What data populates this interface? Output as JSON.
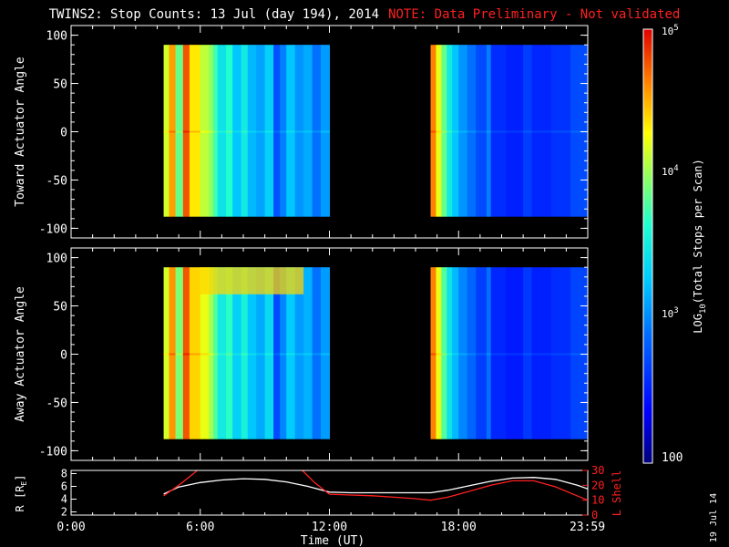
{
  "title": "TWINS2: Stop Counts: 13 Jul (day 194), 2014",
  "note": "NOTE: Data Preliminary - Not validated",
  "date_stamp": "19 Jul 14",
  "colorbar": {
    "label": "LOG10(Total Stops per Scan)",
    "tick_labels": [
      "10^5",
      "10^4",
      "10^3",
      "100"
    ],
    "tick_values": [
      100000,
      10000,
      1000,
      100
    ],
    "range": [
      100,
      100000
    ],
    "scale": "log"
  },
  "colors": {
    "background": "#000000",
    "axis": "#ffffff",
    "note": "#ff2020",
    "r_line": "#ffffff",
    "lshell_line": "#ff2020"
  },
  "chart_data": [
    {
      "type": "heatmap",
      "ylabel": "Toward Actuator Angle",
      "xlim": [
        0,
        24
      ],
      "ylim": [
        -110,
        110
      ],
      "yticks": [
        -100,
        -50,
        0,
        50,
        100
      ],
      "data_time_ranges": [
        [
          4.3,
          12.0
        ],
        [
          16.7,
          24.0
        ]
      ],
      "angle_range": [
        -88,
        90
      ],
      "bands": [
        {
          "t0": 4.3,
          "t1": 4.55,
          "level": 0.72
        },
        {
          "t0": 4.55,
          "t1": 4.85,
          "level": 0.85
        },
        {
          "t0": 4.85,
          "t1": 5.2,
          "level": 0.62
        },
        {
          "t0": 5.2,
          "t1": 5.5,
          "level": 0.92
        },
        {
          "t0": 5.5,
          "t1": 6.0,
          "level": 0.78
        },
        {
          "t0": 6.0,
          "t1": 6.4,
          "level": 0.7
        },
        {
          "t0": 6.4,
          "t1": 6.6,
          "level": 0.66
        },
        {
          "t0": 6.6,
          "t1": 6.8,
          "level": 0.58
        },
        {
          "t0": 6.8,
          "t1": 7.2,
          "level": 0.48
        },
        {
          "t0": 7.2,
          "t1": 7.5,
          "level": 0.55
        },
        {
          "t0": 7.5,
          "t1": 7.9,
          "level": 0.42
        },
        {
          "t0": 7.9,
          "t1": 8.2,
          "level": 0.5
        },
        {
          "t0": 8.2,
          "t1": 8.6,
          "level": 0.4
        },
        {
          "t0": 8.6,
          "t1": 9.0,
          "level": 0.37
        },
        {
          "t0": 9.0,
          "t1": 9.4,
          "level": 0.44
        },
        {
          "t0": 9.4,
          "t1": 9.7,
          "level": 0.25
        },
        {
          "t0": 9.7,
          "t1": 10.0,
          "level": 0.32
        },
        {
          "t0": 10.0,
          "t1": 10.4,
          "level": 0.42
        },
        {
          "t0": 10.4,
          "t1": 10.8,
          "level": 0.35
        },
        {
          "t0": 10.8,
          "t1": 11.2,
          "level": 0.38
        },
        {
          "t0": 11.2,
          "t1": 11.6,
          "level": 0.3
        },
        {
          "t0": 11.6,
          "t1": 12.0,
          "level": 0.36
        },
        {
          "t0": 16.7,
          "t1": 16.95,
          "level": 0.88
        },
        {
          "t0": 16.95,
          "t1": 17.2,
          "level": 0.74
        },
        {
          "t0": 17.2,
          "t1": 17.45,
          "level": 0.62
        },
        {
          "t0": 17.45,
          "t1": 17.7,
          "level": 0.5
        },
        {
          "t0": 17.7,
          "t1": 18.0,
          "level": 0.42
        },
        {
          "t0": 18.0,
          "t1": 18.4,
          "level": 0.35
        },
        {
          "t0": 18.4,
          "t1": 18.8,
          "level": 0.3
        },
        {
          "t0": 18.8,
          "t1": 19.3,
          "level": 0.24
        },
        {
          "t0": 19.3,
          "t1": 19.5,
          "level": 0.32
        },
        {
          "t0": 19.5,
          "t1": 20.2,
          "level": 0.19
        },
        {
          "t0": 20.2,
          "t1": 21.0,
          "level": 0.17
        },
        {
          "t0": 21.0,
          "t1": 21.4,
          "level": 0.22
        },
        {
          "t0": 21.4,
          "t1": 22.3,
          "level": 0.18
        },
        {
          "t0": 22.3,
          "t1": 23.2,
          "level": 0.2
        },
        {
          "t0": 23.2,
          "t1": 24.0,
          "level": 0.24
        }
      ]
    },
    {
      "type": "heatmap",
      "ylabel": "Away Actuator Angle",
      "xlim": [
        0,
        24
      ],
      "ylim": [
        -110,
        110
      ],
      "yticks": [
        -100,
        -50,
        0,
        50,
        100
      ],
      "data_time_ranges": [
        [
          4.3,
          12.0
        ],
        [
          16.7,
          24.0
        ]
      ],
      "angle_range": [
        -88,
        90
      ],
      "bands": [
        {
          "t0": 4.3,
          "t1": 4.55,
          "level": 0.72
        },
        {
          "t0": 4.55,
          "t1": 4.85,
          "level": 0.86
        },
        {
          "t0": 4.85,
          "t1": 5.2,
          "level": 0.64
        },
        {
          "t0": 5.2,
          "t1": 5.5,
          "level": 0.92
        },
        {
          "t0": 5.5,
          "t1": 6.0,
          "level": 0.8
        },
        {
          "t0": 6.0,
          "t1": 6.4,
          "level": 0.74
        },
        {
          "t0": 6.4,
          "t1": 6.6,
          "level": 0.68
        },
        {
          "t0": 6.6,
          "t1": 6.8,
          "level": 0.6
        },
        {
          "t0": 6.8,
          "t1": 7.2,
          "level": 0.5
        },
        {
          "t0": 7.2,
          "t1": 7.5,
          "level": 0.56
        },
        {
          "t0": 7.5,
          "t1": 7.9,
          "level": 0.44
        },
        {
          "t0": 7.9,
          "t1": 8.2,
          "level": 0.52
        },
        {
          "t0": 8.2,
          "t1": 8.6,
          "level": 0.42
        },
        {
          "t0": 8.6,
          "t1": 9.0,
          "level": 0.38
        },
        {
          "t0": 9.0,
          "t1": 9.4,
          "level": 0.46
        },
        {
          "t0": 9.4,
          "t1": 9.7,
          "level": 0.24
        },
        {
          "t0": 9.7,
          "t1": 10.0,
          "level": 0.33
        },
        {
          "t0": 10.0,
          "t1": 10.4,
          "level": 0.43
        },
        {
          "t0": 10.4,
          "t1": 10.8,
          "level": 0.36
        },
        {
          "t0": 10.8,
          "t1": 11.2,
          "level": 0.39
        },
        {
          "t0": 11.2,
          "t1": 11.6,
          "level": 0.3
        },
        {
          "t0": 11.6,
          "t1": 12.0,
          "level": 0.36
        },
        {
          "t0": 16.7,
          "t1": 16.95,
          "level": 0.88
        },
        {
          "t0": 16.95,
          "t1": 17.2,
          "level": 0.74
        },
        {
          "t0": 17.2,
          "t1": 17.45,
          "level": 0.6
        },
        {
          "t0": 17.45,
          "t1": 17.7,
          "level": 0.48
        },
        {
          "t0": 17.7,
          "t1": 18.0,
          "level": 0.4
        },
        {
          "t0": 18.0,
          "t1": 18.4,
          "level": 0.33
        },
        {
          "t0": 18.4,
          "t1": 18.8,
          "level": 0.28
        },
        {
          "t0": 18.8,
          "t1": 19.3,
          "level": 0.22
        },
        {
          "t0": 19.3,
          "t1": 19.5,
          "level": 0.3
        },
        {
          "t0": 19.5,
          "t1": 20.2,
          "level": 0.18
        },
        {
          "t0": 20.2,
          "t1": 21.0,
          "level": 0.16
        },
        {
          "t0": 21.0,
          "t1": 21.4,
          "level": 0.21
        },
        {
          "t0": 21.4,
          "t1": 22.3,
          "level": 0.17
        },
        {
          "t0": 22.3,
          "t1": 23.2,
          "level": 0.19
        },
        {
          "t0": 23.2,
          "t1": 24.0,
          "level": 0.23
        }
      ],
      "highlight": {
        "t0": 6.0,
        "t1": 10.8,
        "angle0": 62,
        "angle1": 90,
        "level": 0.8
      }
    },
    {
      "type": "line",
      "ylabel": "R [RE]",
      "y2label": "L Shell",
      "xlabel": "Time (UT)",
      "xlim": [
        0,
        24
      ],
      "ylim": [
        1.5,
        8.5
      ],
      "y2lim": [
        0,
        30
      ],
      "yticks": [
        2,
        4,
        6,
        8
      ],
      "y2ticks": [
        0,
        10,
        20,
        30
      ],
      "xtick_labels": [
        "0:00",
        "6:00",
        "12:00",
        "18:00",
        "23:59"
      ],
      "xtick_values": [
        0,
        6,
        12,
        18,
        23.98
      ],
      "series": [
        {
          "axis": "left",
          "x": [
            4.3,
            5.0,
            6.0,
            7.0,
            8.0,
            9.0,
            10.0,
            11.0,
            12.0,
            13.0,
            14.0,
            15.0,
            16.0,
            16.7,
            17.5,
            18.5,
            19.5,
            20.5,
            21.5,
            22.5,
            23.5,
            24.0
          ],
          "y": [
            4.8,
            5.9,
            6.6,
            7.0,
            7.2,
            7.1,
            6.7,
            6.0,
            5.1,
            5.0,
            5.0,
            5.0,
            5.0,
            5.0,
            5.4,
            6.1,
            6.8,
            7.3,
            7.4,
            7.1,
            6.2,
            5.6
          ]
        },
        {
          "axis": "right",
          "x": [
            4.3,
            5.0,
            5.7,
            6.0
          ],
          "y": [
            13,
            20,
            28,
            32
          ]
        },
        {
          "axis": "right",
          "x": [
            10.6,
            11.3,
            12.0,
            13.0,
            14.0,
            15.0,
            16.0,
            16.7,
            17.5,
            18.5,
            19.5,
            20.5,
            21.5,
            22.5,
            23.5,
            24.0
          ],
          "y": [
            32,
            22,
            14,
            13.5,
            13,
            12,
            11,
            10,
            12,
            16,
            20,
            23,
            23,
            19,
            13,
            10
          ]
        }
      ]
    }
  ]
}
